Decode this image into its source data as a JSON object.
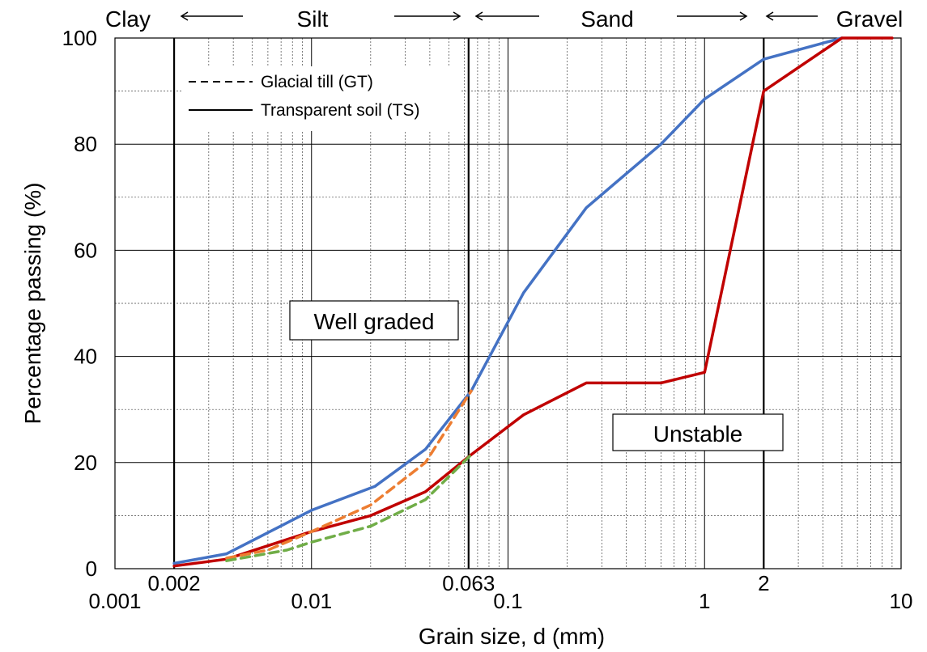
{
  "chart_data": {
    "type": "line",
    "x_scale": "log",
    "xlabel": "Grain size, d (mm)",
    "ylabel": "Percentage passing (%)",
    "xlim": [
      0.001,
      10
    ],
    "ylim": [
      0,
      100
    ],
    "grid": true,
    "x_ticks": [
      {
        "value": 0.001,
        "label": "0.001"
      },
      {
        "value": 0.01,
        "label": "0.01"
      },
      {
        "value": 0.1,
        "label": "0.1"
      },
      {
        "value": 1,
        "label": "1"
      },
      {
        "value": 10,
        "label": "10"
      }
    ],
    "x_extra_ticks": [
      {
        "value": 0.002,
        "label": "0.002"
      },
      {
        "value": 0.063,
        "label": "0.063"
      },
      {
        "value": 2,
        "label": "2"
      }
    ],
    "y_ticks": [
      0,
      20,
      40,
      60,
      80,
      100
    ],
    "boundaries": [
      0.002,
      0.063,
      2
    ],
    "zones": [
      "Clay",
      "Silt",
      "Sand",
      "Gravel"
    ],
    "legend": [
      {
        "label": "Glacial till (GT)",
        "style": "dashed"
      },
      {
        "label": "Transparent soil (TS)",
        "style": "solid"
      }
    ],
    "annotations": [
      "Well graded",
      "Unstable"
    ],
    "series": [
      {
        "style": "solid",
        "color": "#4472C4",
        "x": [
          0.002,
          0.0037,
          0.01,
          0.021,
          0.038,
          0.065,
          0.12,
          0.25,
          0.6,
          1.0,
          2.0,
          5.0
        ],
        "y": [
          1,
          2.8,
          11,
          15.5,
          22.5,
          33.5,
          52,
          68,
          80,
          88.5,
          96,
          100
        ]
      },
      {
        "style": "solid",
        "color": "#C00000",
        "x": [
          0.002,
          0.0037,
          0.01,
          0.02,
          0.038,
          0.065,
          0.12,
          0.25,
          0.4,
          0.6,
          1.0,
          2.0,
          5.0,
          9.0
        ],
        "y": [
          0.5,
          1.8,
          7,
          10,
          14.5,
          21.5,
          29,
          35,
          35,
          35,
          37,
          90,
          100,
          100
        ]
      },
      {
        "style": "dashed",
        "color": "#ED7D31",
        "x": [
          0.0037,
          0.006,
          0.01,
          0.02,
          0.038,
          0.065
        ],
        "y": [
          2,
          3.5,
          7,
          12,
          20,
          33.5
        ]
      },
      {
        "style": "dashed",
        "color": "#70AD47",
        "x": [
          0.0037,
          0.0075,
          0.01,
          0.02,
          0.038,
          0.065
        ],
        "y": [
          1.5,
          3.5,
          5,
          8,
          13,
          21.5
        ]
      }
    ]
  }
}
